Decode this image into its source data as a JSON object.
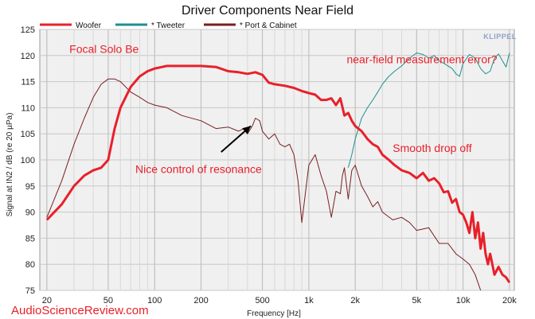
{
  "chart_data": {
    "type": "line",
    "title": "Driver Components Near Field",
    "xlabel": "Frequency [Hz]",
    "ylabel": "Signal at IN2 / dB (re 20 µPa)",
    "xscale": "log",
    "xlim": [
      18,
      21500
    ],
    "ylim": [
      75,
      125
    ],
    "xticks": [
      {
        "value": 20,
        "label": "20"
      },
      {
        "value": 50,
        "label": "50"
      },
      {
        "value": 100,
        "label": "100"
      },
      {
        "value": 200,
        "label": "200"
      },
      {
        "value": 500,
        "label": "500"
      },
      {
        "value": 1000,
        "label": "1k"
      },
      {
        "value": 2000,
        "label": "2k"
      },
      {
        "value": 5000,
        "label": "5k"
      },
      {
        "value": 10000,
        "label": "10k"
      },
      {
        "value": 20000,
        "label": "20k"
      }
    ],
    "yticks": [
      75,
      80,
      85,
      90,
      95,
      100,
      105,
      110,
      115,
      120,
      125
    ],
    "grid": true,
    "legend_position": "top",
    "series": [
      {
        "name": "Woofer",
        "color": "#e8202a",
        "x": [
          20,
          25,
          30,
          35,
          40,
          45,
          50,
          55,
          60,
          70,
          80,
          90,
          100,
          120,
          150,
          200,
          250,
          300,
          350,
          400,
          450,
          500,
          550,
          600,
          700,
          800,
          900,
          1000,
          1100,
          1200,
          1300,
          1400,
          1500,
          1600,
          1700,
          1800,
          1900,
          2000,
          2200,
          2400,
          2600,
          2800,
          3000,
          3300,
          3600,
          4000,
          4500,
          5000,
          5500,
          6000,
          6500,
          7000,
          7500,
          8000,
          8500,
          9000,
          9500,
          10000,
          10500,
          11000,
          11500,
          12000,
          12500,
          13000,
          13500,
          14000,
          14500,
          15000,
          16000,
          17000,
          18000,
          19000,
          20000
        ],
        "y": [
          88.5,
          91.5,
          95,
          97,
          98,
          98.5,
          100,
          106,
          110,
          114,
          116,
          117,
          117.5,
          118,
          118,
          118,
          117.8,
          117,
          116.8,
          116.5,
          116.8,
          116.3,
          114.8,
          114.5,
          114.2,
          113.8,
          113.2,
          112.8,
          112.5,
          111.5,
          111.5,
          111.8,
          110.5,
          111.8,
          108.5,
          109,
          107.5,
          106.5,
          105.5,
          104,
          103,
          102.5,
          101,
          100,
          99,
          98,
          97.5,
          96.5,
          97.5,
          96,
          96.5,
          95.5,
          93.8,
          94,
          91.8,
          92.5,
          90,
          89.5,
          88,
          86,
          90,
          85,
          88,
          83,
          86,
          82,
          80,
          82,
          78,
          79.5,
          78,
          77.5,
          76.5
        ]
      },
      {
        "name": "* Tweeter",
        "color": "#1f8f8f",
        "x": [
          1800,
          1900,
          2000,
          2200,
          2400,
          2600,
          2800,
          3000,
          3300,
          3600,
          4000,
          4500,
          5000,
          5500,
          6000,
          6500,
          7000,
          7500,
          8000,
          8500,
          9000,
          9500,
          10000,
          11000,
          12000,
          13000,
          14000,
          15000,
          16000,
          17000,
          18000,
          19000,
          20000
        ],
        "y": [
          98.5,
          101,
          104,
          108,
          110,
          111.5,
          113,
          114.5,
          116,
          117,
          118,
          119.5,
          120.5,
          120.2,
          119.5,
          120,
          119,
          118.5,
          118,
          117.5,
          116.5,
          116,
          118.5,
          120.2,
          119.5,
          117.5,
          116.5,
          117,
          119.5,
          120.3,
          119,
          117.8,
          120.5
        ]
      },
      {
        "name": "* Port & Cabinet",
        "color": "#7a1f1f",
        "x": [
          20,
          25,
          30,
          35,
          40,
          45,
          50,
          55,
          60,
          70,
          80,
          90,
          100,
          120,
          150,
          200,
          250,
          300,
          350,
          380,
          400,
          430,
          450,
          480,
          500,
          550,
          600,
          650,
          700,
          750,
          800,
          850,
          900,
          1000,
          1100,
          1200,
          1300,
          1400,
          1500,
          1600,
          1650,
          1700,
          1800,
          1900,
          2000,
          2200,
          2400,
          2600,
          2800,
          3000,
          3500,
          4000,
          4500,
          5000,
          6000,
          7000,
          8000,
          9000,
          10000,
          11000,
          12000,
          13000
        ],
        "y": [
          89,
          96,
          103,
          108,
          112,
          114.5,
          115.5,
          115.5,
          115,
          113,
          112,
          111,
          110.5,
          110,
          108.5,
          107.5,
          106,
          106.3,
          105.5,
          106,
          105,
          106.5,
          108,
          107.5,
          105.5,
          104,
          105,
          103,
          102.5,
          103,
          101,
          96,
          88,
          99,
          101,
          97,
          94,
          89,
          94,
          93.5,
          97,
          98.5,
          92.5,
          98,
          99,
          95,
          93,
          91,
          92,
          90,
          88.5,
          89,
          88,
          86.5,
          87,
          84,
          84,
          82,
          81,
          80,
          78,
          75
        ]
      }
    ],
    "annotations": [
      {
        "text": "Focal Solo Be",
        "x": 28,
        "y": 120.5
      },
      {
        "text": "near-field measurement error?",
        "x": 1760,
        "y": 118.5
      },
      {
        "text": "Smooth drop off",
        "x": 3500,
        "y": 101.5
      },
      {
        "text": "Nice control of resonance",
        "x": 75,
        "y": 97.5
      }
    ],
    "arrow": {
      "from": {
        "x": 270,
        "y": 101.5
      },
      "to": {
        "x": 420,
        "y": 106.5
      }
    },
    "watermark": "AudioScienceReview.com",
    "logo": "KLIPPEL"
  }
}
